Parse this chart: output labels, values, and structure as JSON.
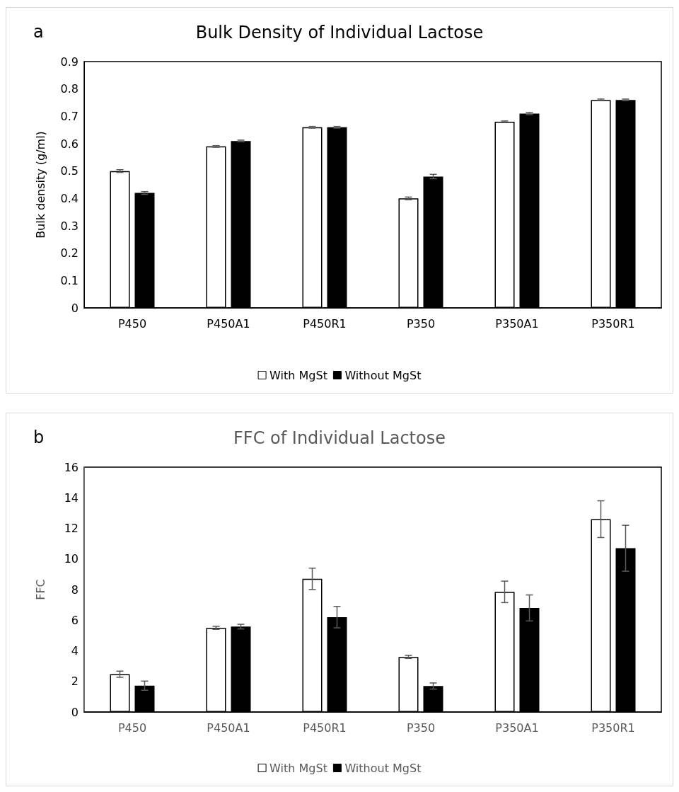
{
  "chart_data": [
    {
      "type": "bar",
      "title": "Bulk Density of Individual Lactose",
      "ylabel": "Bulk density (g/ml)",
      "annotations": [
        "a"
      ],
      "categories": [
        "P450",
        "P450A1",
        "P450R1",
        "P350",
        "P350A1",
        "P350R1"
      ],
      "series": [
        {
          "name": "With MgSt",
          "color": "#ffffff",
          "values": [
            0.5,
            0.59,
            0.66,
            0.4,
            0.68,
            0.76
          ],
          "errors": [
            0.005,
            0.003,
            0.003,
            0.005,
            0.003,
            0.003
          ]
        },
        {
          "name": "Without MgSt",
          "color": "#000000",
          "values": [
            0.42,
            0.61,
            0.66,
            0.48,
            0.71,
            0.76
          ],
          "errors": [
            0.005,
            0.003,
            0.003,
            0.008,
            0.004,
            0.003
          ]
        }
      ],
      "ylim": [
        0,
        0.9
      ],
      "yticks": [
        0,
        0.1,
        0.2,
        0.3,
        0.4,
        0.5,
        0.6,
        0.7,
        0.8,
        0.9
      ],
      "grid": false,
      "legend": "bottom"
    },
    {
      "type": "bar",
      "title": "FFC of Individual Lactose",
      "ylabel": "FFC",
      "annotations": [
        "b"
      ],
      "categories": [
        "P450",
        "P450A1",
        "P450R1",
        "P350",
        "P350A1",
        "P350R1"
      ],
      "series": [
        {
          "name": "With MgSt",
          "color": "#ffffff",
          "values": [
            2.47,
            5.5,
            8.7,
            3.6,
            7.85,
            12.6
          ],
          "errors": [
            0.2,
            0.1,
            0.7,
            0.1,
            0.7,
            1.2
          ]
        },
        {
          "name": "Without MgSt",
          "color": "#000000",
          "values": [
            1.72,
            5.58,
            6.2,
            1.7,
            6.8,
            10.7
          ],
          "errors": [
            0.3,
            0.15,
            0.7,
            0.2,
            0.85,
            1.5
          ]
        }
      ],
      "ylim": [
        0,
        16
      ],
      "yticks": [
        0,
        2,
        4,
        6,
        8,
        10,
        12,
        14,
        16
      ],
      "grid": false,
      "legend": "bottom"
    }
  ]
}
